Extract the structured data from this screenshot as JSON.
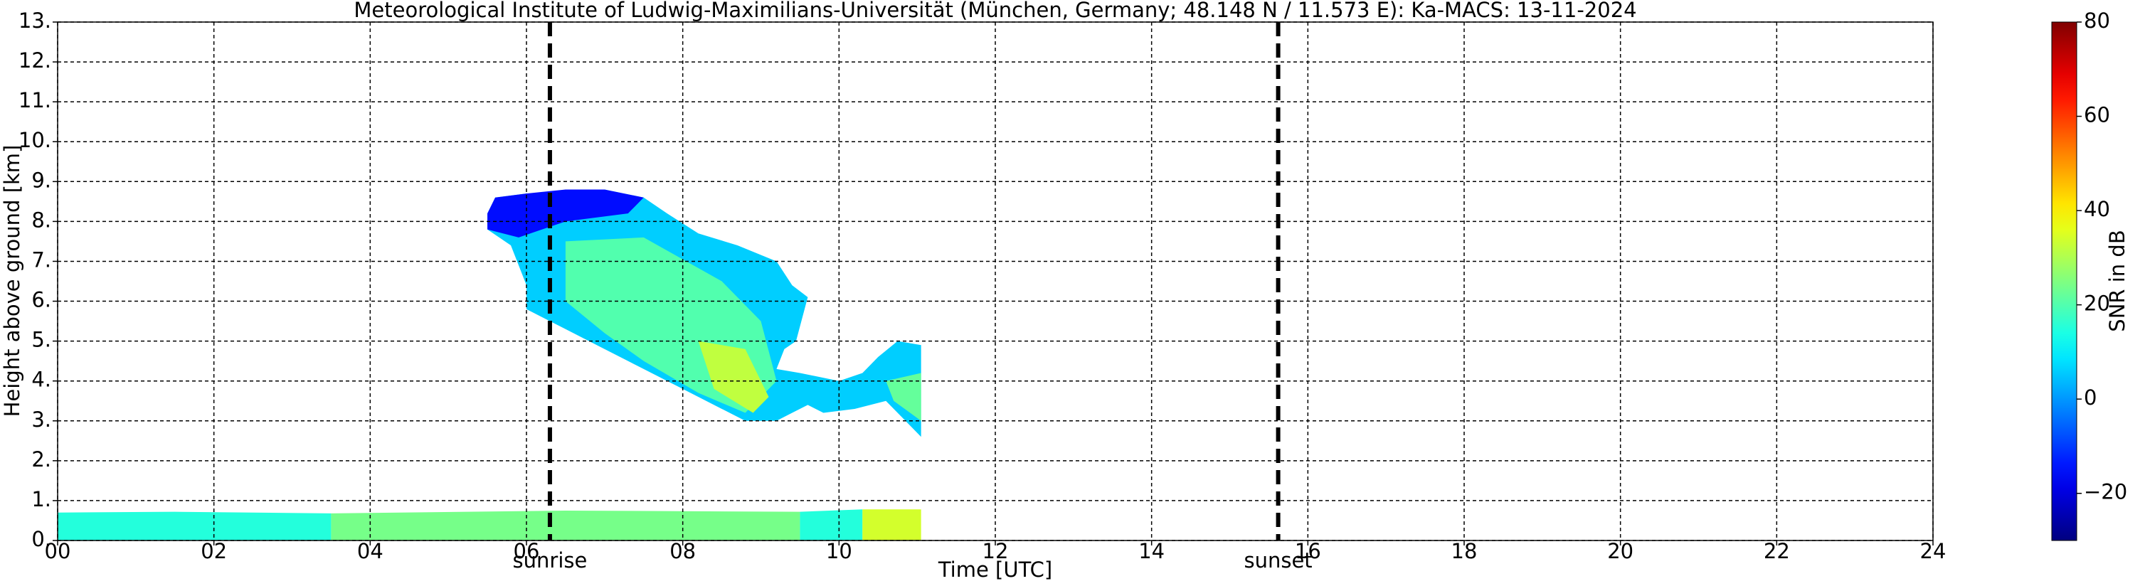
{
  "chart_data": {
    "type": "time-height",
    "title": "Meteorological Institute of Ludwig-Maximilians-Universität (München, Germany; 48.148 N / 11.573 E):    Ka-MACS: 13-11-2024",
    "xlabel": "Time [UTC]",
    "ylabel": "Height above ground [km]",
    "xlim": [
      0,
      24
    ],
    "xticks": [
      {
        "value": 0,
        "label": "00"
      },
      {
        "value": 2,
        "label": "02"
      },
      {
        "value": 4,
        "label": "04"
      },
      {
        "value": 6,
        "label": "06"
      },
      {
        "value": 8,
        "label": "08"
      },
      {
        "value": 10,
        "label": "10"
      },
      {
        "value": 12,
        "label": "12"
      },
      {
        "value": 14,
        "label": "14"
      },
      {
        "value": 16,
        "label": "16"
      },
      {
        "value": 18,
        "label": "18"
      },
      {
        "value": 20,
        "label": "20"
      },
      {
        "value": 22,
        "label": "22"
      },
      {
        "value": 24,
        "label": "24"
      }
    ],
    "ylim": [
      0,
      13
    ],
    "yticks": [
      {
        "value": 0,
        "label": "0."
      },
      {
        "value": 1,
        "label": "1."
      },
      {
        "value": 2,
        "label": "2."
      },
      {
        "value": 3,
        "label": "3."
      },
      {
        "value": 4,
        "label": "4."
      },
      {
        "value": 5,
        "label": "5."
      },
      {
        "value": 6,
        "label": "6."
      },
      {
        "value": 7,
        "label": "7."
      },
      {
        "value": 8,
        "label": "8."
      },
      {
        "value": 9,
        "label": "9."
      },
      {
        "value": 10,
        "label": "10."
      },
      {
        "value": 11,
        "label": "11."
      },
      {
        "value": 12,
        "label": "12."
      },
      {
        "value": 13,
        "label": "13."
      }
    ],
    "grid": true,
    "colormap": "jet",
    "colorbar": {
      "label": "SNR in dB",
      "lim": [
        -30,
        80
      ],
      "ticks": [
        {
          "value": -20,
          "label": "−20"
        },
        0,
        20,
        40,
        60,
        80
      ]
    },
    "markers": [
      {
        "x": 6.3,
        "label": "sunrise"
      },
      {
        "x": 15.62,
        "label": "sunset"
      }
    ],
    "echoes": [
      {
        "snr": 15,
        "x": [
          0,
          1.5,
          3.5,
          3.5,
          0
        ],
        "y": [
          0.7,
          0.72,
          0.68,
          0,
          0
        ]
      },
      {
        "snr": 24,
        "x": [
          3.5,
          6.5,
          9.5,
          9.5,
          3.5
        ],
        "y": [
          0.68,
          0.75,
          0.72,
          0,
          0
        ]
      },
      {
        "snr": 15,
        "x": [
          9.5,
          10.3,
          10.3,
          9.5
        ],
        "y": [
          0.72,
          0.78,
          0,
          0
        ]
      },
      {
        "snr": 34,
        "x": [
          10.3,
          11.05,
          11.05,
          10.3
        ],
        "y": [
          0.78,
          0.78,
          0,
          0
        ]
      },
      {
        "snr": 6,
        "x": [
          5.5,
          5.6,
          6.0,
          6.3,
          6.5,
          7.0,
          7.5,
          7.8,
          8.2,
          8.7,
          9.2,
          9.4,
          9.6,
          9.45,
          9.3,
          9.2,
          9.5,
          10.0,
          10.3,
          10.5,
          10.75,
          11.05,
          11.05,
          10.6,
          10.2,
          9.8,
          9.6,
          9.4,
          9.2,
          8.8,
          8.5,
          8.0,
          7.5,
          7.0,
          6.5,
          6.2,
          6.0,
          6.0,
          5.8,
          5.5
        ],
        "y": [
          8.2,
          8.6,
          8.7,
          8.6,
          8.8,
          8.8,
          8.6,
          8.2,
          7.7,
          7.4,
          7.0,
          6.4,
          6.1,
          5.0,
          4.8,
          4.3,
          4.2,
          4.0,
          4.2,
          4.6,
          5.0,
          4.9,
          2.6,
          3.5,
          3.3,
          3.2,
          3.4,
          3.2,
          3.0,
          3.0,
          3.3,
          3.8,
          4.3,
          4.8,
          5.3,
          5.6,
          5.8,
          6.4,
          7.4,
          7.8
        ]
      },
      {
        "snr": -15,
        "x": [
          5.5,
          5.6,
          6.0,
          6.5,
          7.0,
          7.5,
          7.3,
          6.5,
          5.9,
          5.5
        ],
        "y": [
          8.2,
          8.6,
          8.7,
          8.8,
          8.8,
          8.6,
          8.2,
          8.0,
          7.6,
          7.8
        ]
      },
      {
        "snr": 20,
        "x": [
          6.5,
          7.5,
          8.5,
          9.0,
          9.2,
          8.8,
          8.2,
          7.5,
          7.0,
          6.5
        ],
        "y": [
          7.5,
          7.6,
          6.5,
          5.5,
          4.0,
          3.2,
          3.7,
          4.5,
          5.2,
          6.0
        ]
      },
      {
        "snr": 32,
        "x": [
          8.2,
          8.8,
          9.1,
          8.9,
          8.4
        ],
        "y": [
          5.0,
          4.8,
          3.6,
          3.2,
          3.8
        ]
      },
      {
        "snr": 22,
        "x": [
          10.6,
          11.05,
          11.05,
          10.7
        ],
        "y": [
          4.0,
          4.2,
          3.0,
          3.5
        ]
      }
    ]
  }
}
